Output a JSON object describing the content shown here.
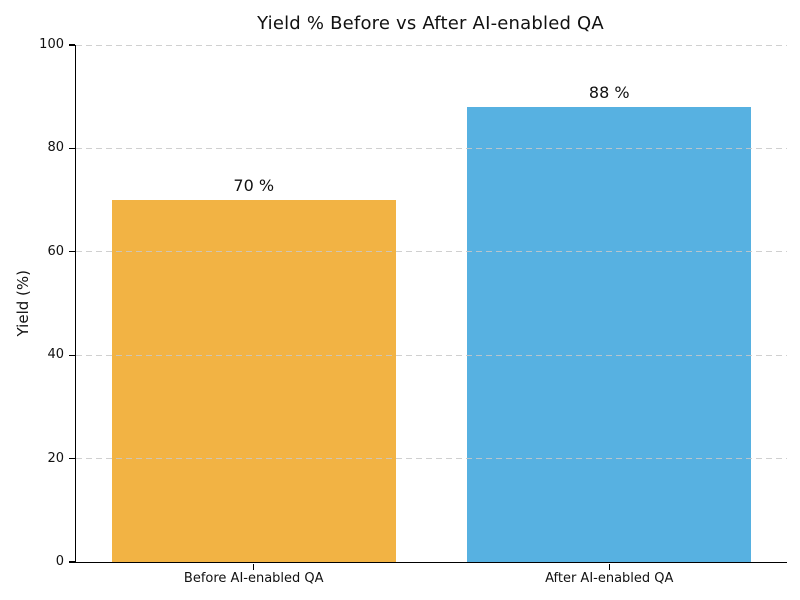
{
  "chart_data": {
    "type": "bar",
    "title": "Yield % Before vs After AI-enabled QA",
    "categories": [
      "Before AI-enabled QA",
      "After AI-enabled QA"
    ],
    "values": [
      70,
      88
    ],
    "value_labels": [
      "70 %",
      "88 %"
    ],
    "xlabel": "",
    "ylabel": "Yield (%)",
    "ylim": [
      0,
      100
    ],
    "yticks": [
      0,
      20,
      40,
      60,
      80,
      100
    ],
    "bar_colors": [
      "#F2B344",
      "#57B1E1"
    ],
    "bar_width_fraction": 0.8,
    "grid": "horizontal dashed, drawn above bars",
    "grid_color": "#cccccc",
    "spine_color": "#000000",
    "background_color": "#ffffff",
    "legend": "none"
  }
}
